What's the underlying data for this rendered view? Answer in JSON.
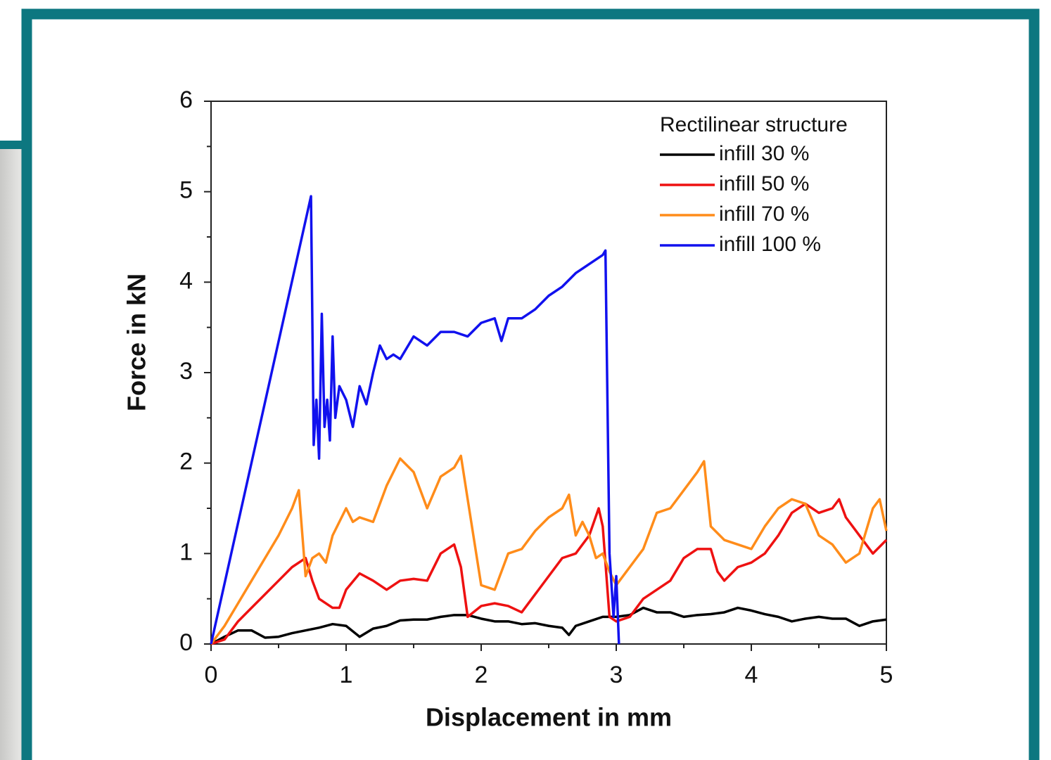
{
  "chart_data": {
    "type": "line",
    "legend_title": "Rectilinear structure",
    "xlabel": "Displacement in mm",
    "ylabel": "Force in kN",
    "xlim": [
      0,
      5
    ],
    "ylim": [
      0,
      6
    ],
    "xticks": [
      0,
      1,
      2,
      3,
      4,
      5
    ],
    "yticks": [
      0,
      1,
      2,
      3,
      4,
      5,
      6
    ],
    "xminorticks": [
      0.5,
      1.5,
      2.5,
      3.5,
      4.5
    ],
    "yminorticks": [
      0.5,
      1.5,
      2.5,
      3.5,
      4.5,
      5.5
    ],
    "legend": "upper right",
    "series": [
      {
        "name": "infill 30 %",
        "color": "#000000",
        "x": [
          0,
          0.1,
          0.2,
          0.3,
          0.4,
          0.5,
          0.6,
          0.7,
          0.8,
          0.9,
          1.0,
          1.1,
          1.2,
          1.3,
          1.4,
          1.5,
          1.6,
          1.7,
          1.8,
          1.9,
          2.0,
          2.1,
          2.2,
          2.3,
          2.4,
          2.5,
          2.6,
          2.65,
          2.7,
          2.8,
          2.9,
          3.0,
          3.1,
          3.2,
          3.3,
          3.4,
          3.5,
          3.6,
          3.7,
          3.8,
          3.9,
          4.0,
          4.1,
          4.2,
          4.3,
          4.4,
          4.5,
          4.6,
          4.7,
          4.8,
          4.9,
          5.0
        ],
        "values": [
          0,
          0.08,
          0.15,
          0.15,
          0.07,
          0.08,
          0.12,
          0.15,
          0.18,
          0.22,
          0.2,
          0.08,
          0.17,
          0.2,
          0.26,
          0.27,
          0.27,
          0.3,
          0.32,
          0.32,
          0.28,
          0.25,
          0.25,
          0.22,
          0.23,
          0.2,
          0.18,
          0.1,
          0.2,
          0.25,
          0.3,
          0.3,
          0.32,
          0.4,
          0.35,
          0.35,
          0.3,
          0.32,
          0.33,
          0.35,
          0.4,
          0.37,
          0.33,
          0.3,
          0.25,
          0.28,
          0.3,
          0.28,
          0.28,
          0.2,
          0.25,
          0.27
        ]
      },
      {
        "name": "infill 50 %",
        "color": "#ee1111",
        "x": [
          0,
          0.1,
          0.2,
          0.3,
          0.4,
          0.5,
          0.6,
          0.7,
          0.75,
          0.8,
          0.9,
          0.95,
          1.0,
          1.1,
          1.2,
          1.3,
          1.4,
          1.5,
          1.6,
          1.7,
          1.8,
          1.85,
          1.9,
          2.0,
          2.1,
          2.2,
          2.3,
          2.4,
          2.5,
          2.6,
          2.7,
          2.8,
          2.87,
          2.9,
          2.95,
          3.0,
          3.1,
          3.2,
          3.3,
          3.4,
          3.5,
          3.6,
          3.7,
          3.75,
          3.8,
          3.9,
          4.0,
          4.1,
          4.2,
          4.3,
          4.4,
          4.5,
          4.6,
          4.65,
          4.7,
          4.8,
          4.9,
          5.0
        ],
        "values": [
          0,
          0.05,
          0.25,
          0.4,
          0.55,
          0.7,
          0.85,
          0.95,
          0.7,
          0.5,
          0.4,
          0.4,
          0.6,
          0.78,
          0.7,
          0.6,
          0.7,
          0.72,
          0.7,
          1.0,
          1.1,
          0.85,
          0.3,
          0.42,
          0.45,
          0.42,
          0.35,
          0.55,
          0.75,
          0.95,
          1.0,
          1.2,
          1.5,
          1.3,
          0.3,
          0.25,
          0.3,
          0.5,
          0.6,
          0.7,
          0.95,
          1.05,
          1.05,
          0.8,
          0.7,
          0.85,
          0.9,
          1.0,
          1.2,
          1.45,
          1.55,
          1.45,
          1.5,
          1.6,
          1.4,
          1.2,
          1.0,
          1.15
        ]
      },
      {
        "name": "infill 70 %",
        "color": "#ff8c1a",
        "x": [
          0,
          0.1,
          0.2,
          0.3,
          0.4,
          0.5,
          0.6,
          0.65,
          0.7,
          0.75,
          0.8,
          0.85,
          0.9,
          1.0,
          1.05,
          1.1,
          1.2,
          1.3,
          1.4,
          1.5,
          1.6,
          1.7,
          1.8,
          1.85,
          1.9,
          2.0,
          2.1,
          2.2,
          2.3,
          2.4,
          2.5,
          2.6,
          2.65,
          2.7,
          2.75,
          2.8,
          2.85,
          2.9,
          2.95,
          3.0,
          3.1,
          3.2,
          3.3,
          3.4,
          3.5,
          3.6,
          3.65,
          3.7,
          3.8,
          3.9,
          4.0,
          4.1,
          4.2,
          4.3,
          4.4,
          4.5,
          4.6,
          4.7,
          4.8,
          4.9,
          4.95,
          5.0
        ],
        "values": [
          0,
          0.2,
          0.45,
          0.7,
          0.95,
          1.2,
          1.5,
          1.7,
          0.75,
          0.95,
          1.0,
          0.9,
          1.2,
          1.5,
          1.35,
          1.4,
          1.35,
          1.75,
          2.05,
          1.9,
          1.5,
          1.85,
          1.95,
          2.08,
          1.6,
          0.65,
          0.6,
          1.0,
          1.05,
          1.25,
          1.4,
          1.5,
          1.65,
          1.2,
          1.35,
          1.2,
          0.95,
          1.0,
          0.8,
          0.65,
          0.85,
          1.05,
          1.45,
          1.5,
          1.7,
          1.9,
          2.02,
          1.3,
          1.15,
          1.1,
          1.05,
          1.3,
          1.5,
          1.6,
          1.55,
          1.2,
          1.1,
          0.9,
          1.0,
          1.5,
          1.6,
          1.25
        ]
      },
      {
        "name": "infill 100 %",
        "color": "#1111ee",
        "x": [
          0,
          0.74,
          0.76,
          0.78,
          0.8,
          0.82,
          0.84,
          0.86,
          0.88,
          0.9,
          0.92,
          0.95,
          1.0,
          1.05,
          1.1,
          1.15,
          1.2,
          1.25,
          1.3,
          1.35,
          1.4,
          1.5,
          1.6,
          1.7,
          1.8,
          1.9,
          2.0,
          2.1,
          2.15,
          2.2,
          2.3,
          2.4,
          2.5,
          2.6,
          2.7,
          2.8,
          2.9,
          2.92,
          2.95,
          2.98,
          3.0,
          3.02
        ],
        "values": [
          0,
          4.95,
          2.2,
          2.7,
          2.05,
          3.65,
          2.4,
          2.7,
          2.25,
          3.4,
          2.5,
          2.85,
          2.7,
          2.4,
          2.85,
          2.65,
          3.0,
          3.3,
          3.15,
          3.2,
          3.15,
          3.4,
          3.3,
          3.45,
          3.45,
          3.4,
          3.55,
          3.6,
          3.35,
          3.6,
          3.6,
          3.7,
          3.85,
          3.95,
          4.1,
          4.2,
          4.3,
          4.35,
          1.0,
          0.3,
          0.75,
          0
        ]
      }
    ]
  }
}
